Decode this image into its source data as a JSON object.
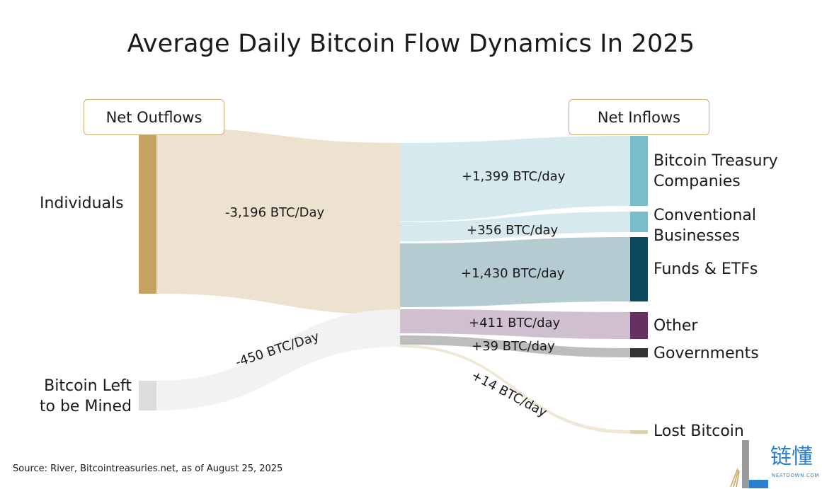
{
  "title": "Average Daily Bitcoin Flow Dynamics In 2025",
  "headers": {
    "outflows": "Net Outflows",
    "inflows": "Net Inflows"
  },
  "sources": [
    {
      "label": "Individuals",
      "value": -3196,
      "flow_label": "-3,196 BTC/Day",
      "color": "#c5a264",
      "flow_color": "#ece2cf"
    },
    {
      "label": "Bitcoin Left to be Mined",
      "value": -450,
      "flow_label": "-450 BTC/Day",
      "color": "#dcdcdc",
      "flow_color": "#f2f2f2"
    }
  ],
  "targets": [
    {
      "label": "Bitcoin Treasury Companies",
      "value": 1399,
      "flow_label": "+1,399 BTC/day",
      "color": "#7bbccb",
      "flow_color": "#d6e9ee"
    },
    {
      "label": "Conventional Businesses",
      "value": 356,
      "flow_label": "+356 BTC/day",
      "color": "#7bbccb",
      "flow_color": "#d6e9ee"
    },
    {
      "label": "Funds & ETFs",
      "value": 1430,
      "flow_label": "+1,430 BTC/day",
      "color": "#0b4a5e",
      "flow_color": "#b3cbd1"
    },
    {
      "label": "Other",
      "value": 411,
      "flow_label": "+411 BTC/day",
      "color": "#63305f",
      "flow_color": "#d0bfcf"
    },
    {
      "label": "Governments",
      "value": 39,
      "flow_label": "+39 BTC/day",
      "color": "#333333",
      "flow_color": "#bdbdbd"
    },
    {
      "label": "Lost Bitcoin",
      "value": 14,
      "flow_label": "+14 BTC/day",
      "color": "#ddd0b0",
      "flow_color": "#efe8d6"
    }
  ],
  "source_note": "Source: River, Bitcointreasuries.net, as of August 25, 2025",
  "logo": {
    "text": "链懂",
    "sub": "NEATDOWN.COM",
    "color": "#2b7fd0"
  }
}
